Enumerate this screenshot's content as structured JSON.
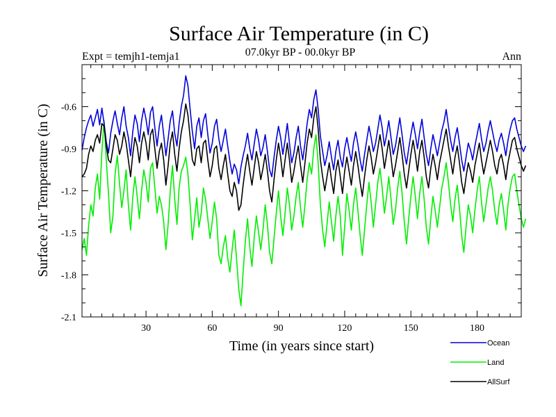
{
  "chart_data": {
    "type": "line",
    "title": "Surface Air Temperature (in C)",
    "subtitle_left": "Expt = temjh1-temja1",
    "subtitle_center": "07.0kyr BP - 00.0kyr BP",
    "subtitle_right": "Ann",
    "xlabel": "Time (in years since start)",
    "ylabel": "Surface Air Temperature (in C)",
    "xlim": [
      1,
      200
    ],
    "ylim": [
      -2.1,
      -0.3
    ],
    "xticks": [
      30,
      60,
      90,
      120,
      150,
      180
    ],
    "xtick_labels": [
      "30",
      "60",
      "90",
      "120",
      "150",
      "180"
    ],
    "yticks": [
      -2.1,
      -1.8,
      -1.5,
      -1.2,
      -0.9,
      -0.6
    ],
    "ytick_labels": [
      "-2.1",
      "-1.8",
      "-1.5",
      "-1.2",
      "-0.9",
      "-0.6"
    ],
    "legend_position": "bottom-right, below plot",
    "series": [
      {
        "name": "Ocean",
        "color": "#0000dd",
        "values": [
          -0.91,
          -0.82,
          -0.75,
          -0.7,
          -0.66,
          -0.74,
          -0.68,
          -0.62,
          -0.73,
          -0.61,
          -0.72,
          -0.85,
          -0.93,
          -0.79,
          -0.7,
          -0.63,
          -0.72,
          -0.8,
          -0.68,
          -0.6,
          -0.74,
          -0.82,
          -0.95,
          -0.78,
          -0.66,
          -0.72,
          -0.85,
          -0.7,
          -0.61,
          -0.69,
          -0.8,
          -0.64,
          -0.6,
          -0.75,
          -0.88,
          -0.74,
          -0.66,
          -0.8,
          -0.95,
          -0.83,
          -0.7,
          -0.63,
          -0.79,
          -0.88,
          -0.72,
          -0.6,
          -0.52,
          -0.38,
          -0.45,
          -0.62,
          -0.78,
          -0.9,
          -0.74,
          -0.68,
          -0.82,
          -0.7,
          -0.65,
          -0.8,
          -0.93,
          -0.86,
          -0.74,
          -0.69,
          -0.83,
          -0.92,
          -0.84,
          -0.76,
          -0.88,
          -0.99,
          -1.08,
          -1.01,
          -1.05,
          -1.15,
          -1.03,
          -0.95,
          -0.88,
          -0.79,
          -0.9,
          -0.98,
          -0.87,
          -0.76,
          -0.84,
          -0.95,
          -0.89,
          -0.8,
          -0.92,
          -1.05,
          -1.1,
          -0.96,
          -0.84,
          -0.74,
          -0.82,
          -0.94,
          -0.84,
          -0.72,
          -0.86,
          -1.0,
          -0.93,
          -0.82,
          -0.74,
          -0.88,
          -0.98,
          -0.86,
          -0.72,
          -0.62,
          -0.68,
          -0.55,
          -0.48,
          -0.62,
          -0.81,
          -0.92,
          -1.02,
          -0.95,
          -0.85,
          -0.96,
          -1.05,
          -0.92,
          -0.84,
          -0.96,
          -1.03,
          -0.9,
          -0.82,
          -0.91,
          -0.99,
          -0.86,
          -0.78,
          -0.87,
          -0.98,
          -1.06,
          -0.94,
          -0.84,
          -0.74,
          -0.82,
          -0.92,
          -0.86,
          -0.76,
          -0.66,
          -0.75,
          -0.88,
          -0.8,
          -0.7,
          -0.82,
          -0.94,
          -0.88,
          -0.78,
          -0.68,
          -0.8,
          -0.93,
          -1.01,
          -0.9,
          -0.8,
          -0.71,
          -0.8,
          -0.9,
          -0.78,
          -0.69,
          -0.82,
          -0.94,
          -1.02,
          -0.9,
          -0.8,
          -0.87,
          -0.95,
          -0.86,
          -0.77,
          -0.71,
          -0.62,
          -0.74,
          -0.84,
          -0.92,
          -0.82,
          -0.75,
          -0.86,
          -0.98,
          -1.06,
          -0.96,
          -0.86,
          -0.91,
          -0.98,
          -0.88,
          -0.8,
          -0.72,
          -0.83,
          -0.92,
          -0.86,
          -0.77,
          -0.7,
          -0.78,
          -0.86,
          -0.92,
          -0.84,
          -0.79,
          -0.86,
          -0.95,
          -0.84,
          -0.76,
          -0.7,
          -0.68,
          -0.76,
          -0.82,
          -0.88,
          -0.92,
          -0.88
        ]
      },
      {
        "name": "Land",
        "color": "#00ee00",
        "values": [
          -1.62,
          -1.54,
          -1.66,
          -1.45,
          -1.3,
          -1.38,
          -1.18,
          -1.08,
          -1.26,
          -0.92,
          -0.7,
          -0.98,
          -1.22,
          -1.5,
          -1.38,
          -1.08,
          -0.95,
          -1.15,
          -1.32,
          -1.2,
          -1.05,
          -1.3,
          -1.48,
          -1.25,
          -1.1,
          -1.24,
          -1.4,
          -1.2,
          -1.05,
          -1.14,
          -1.28,
          -1.04,
          -1.0,
          -1.18,
          -1.36,
          -1.24,
          -1.3,
          -1.42,
          -1.62,
          -1.44,
          -1.2,
          -1.02,
          -1.26,
          -1.44,
          -1.18,
          -1.06,
          -1.02,
          -0.96,
          -1.08,
          -1.3,
          -1.55,
          -1.4,
          -1.25,
          -1.46,
          -1.36,
          -1.18,
          -1.26,
          -1.4,
          -1.54,
          -1.42,
          -1.28,
          -1.4,
          -1.66,
          -1.72,
          -1.6,
          -1.52,
          -1.68,
          -1.78,
          -1.62,
          -1.48,
          -1.68,
          -1.9,
          -2.02,
          -1.78,
          -1.56,
          -1.4,
          -1.6,
          -1.74,
          -1.54,
          -1.38,
          -1.5,
          -1.62,
          -1.48,
          -1.3,
          -1.44,
          -1.64,
          -1.72,
          -1.54,
          -1.36,
          -1.2,
          -1.38,
          -1.52,
          -1.36,
          -1.18,
          -1.3,
          -1.48,
          -1.38,
          -1.24,
          -1.14,
          -1.32,
          -1.46,
          -1.3,
          -1.12,
          -1.0,
          -1.08,
          -0.9,
          -0.8,
          -1.0,
          -1.3,
          -1.48,
          -1.6,
          -1.44,
          -1.28,
          -1.42,
          -1.56,
          -1.38,
          -1.24,
          -1.38,
          -1.66,
          -1.46,
          -1.22,
          -1.34,
          -1.48,
          -1.3,
          -1.18,
          -1.34,
          -1.52,
          -1.66,
          -1.48,
          -1.3,
          -1.14,
          -1.28,
          -1.46,
          -1.3,
          -1.14,
          -1.04,
          -1.18,
          -1.36,
          -1.24,
          -1.1,
          -1.26,
          -1.44,
          -1.34,
          -1.18,
          -1.06,
          -1.22,
          -1.42,
          -1.58,
          -1.4,
          -1.24,
          -1.1,
          -1.24,
          -1.4,
          -1.22,
          -1.1,
          -1.26,
          -1.46,
          -1.58,
          -1.4,
          -1.24,
          -1.34,
          -1.46,
          -1.32,
          -1.18,
          -1.1,
          -1.0,
          -1.14,
          -1.3,
          -1.42,
          -1.26,
          -1.16,
          -1.32,
          -1.52,
          -1.64,
          -1.46,
          -1.3,
          -1.38,
          -1.5,
          -1.34,
          -1.2,
          -1.1,
          -1.28,
          -1.42,
          -1.3,
          -1.18,
          -1.1,
          -1.2,
          -1.34,
          -1.44,
          -1.3,
          -1.22,
          -1.34,
          -1.48,
          -1.3,
          -1.18,
          -1.1,
          -1.08,
          -1.2,
          -1.3,
          -1.4,
          -1.46,
          -1.4
        ]
      },
      {
        "name": "AllSurf",
        "color": "#000000",
        "values": [
          -1.1,
          -1.08,
          -1.04,
          -0.94,
          -0.88,
          -0.92,
          -0.84,
          -0.8,
          -0.86,
          -0.72,
          -0.74,
          -0.88,
          -0.98,
          -1.0,
          -0.9,
          -0.8,
          -0.84,
          -0.94,
          -0.88,
          -0.78,
          -0.86,
          -0.98,
          -1.1,
          -0.94,
          -0.82,
          -0.88,
          -1.0,
          -0.86,
          -0.78,
          -0.86,
          -0.98,
          -0.8,
          -0.76,
          -0.9,
          -1.04,
          -0.92,
          -0.86,
          -0.98,
          -1.16,
          -1.02,
          -0.86,
          -0.78,
          -0.94,
          -1.06,
          -0.9,
          -0.78,
          -0.7,
          -0.58,
          -0.66,
          -0.82,
          -0.98,
          -1.02,
          -0.9,
          -0.88,
          -1.0,
          -0.86,
          -0.84,
          -0.98,
          -1.1,
          -1.02,
          -0.9,
          -0.88,
          -1.04,
          -1.12,
          -1.02,
          -0.94,
          -1.08,
          -1.2,
          -1.24,
          -1.14,
          -1.2,
          -1.34,
          -1.3,
          -1.16,
          -1.04,
          -0.94,
          -1.06,
          -1.16,
          -1.04,
          -0.92,
          -1.0,
          -1.12,
          -1.04,
          -0.94,
          -1.06,
          -1.2,
          -1.28,
          -1.12,
          -0.98,
          -0.86,
          -0.96,
          -1.1,
          -0.98,
          -0.86,
          -0.98,
          -1.14,
          -1.06,
          -0.96,
          -0.88,
          -1.02,
          -1.14,
          -1.0,
          -0.86,
          -0.76,
          -0.82,
          -0.68,
          -0.6,
          -0.76,
          -0.98,
          -1.1,
          -1.2,
          -1.1,
          -1.0,
          -1.12,
          -1.22,
          -1.06,
          -0.98,
          -1.1,
          -1.22,
          -1.06,
          -0.96,
          -1.06,
          -1.16,
          -1.02,
          -0.92,
          -1.02,
          -1.14,
          -1.24,
          -1.1,
          -0.98,
          -0.88,
          -0.96,
          -1.08,
          -1.0,
          -0.9,
          -0.8,
          -0.9,
          -1.04,
          -0.94,
          -0.84,
          -0.96,
          -1.1,
          -1.02,
          -0.92,
          -0.82,
          -0.94,
          -1.08,
          -1.18,
          -1.06,
          -0.94,
          -0.84,
          -0.94,
          -1.06,
          -0.92,
          -0.84,
          -0.96,
          -1.1,
          -1.18,
          -1.04,
          -0.94,
          -1.02,
          -1.12,
          -1.0,
          -0.92,
          -0.84,
          -0.76,
          -0.88,
          -0.98,
          -1.08,
          -0.96,
          -0.88,
          -1.0,
          -1.14,
          -1.22,
          -1.1,
          -1.0,
          -1.06,
          -1.14,
          -1.02,
          -0.94,
          -0.86,
          -0.98,
          -1.08,
          -1.0,
          -0.92,
          -0.84,
          -0.92,
          -1.02,
          -1.08,
          -0.98,
          -0.94,
          -1.02,
          -1.12,
          -1.0,
          -0.92,
          -0.84,
          -0.82,
          -0.9,
          -0.96,
          -1.02,
          -1.06,
          -1.02
        ]
      }
    ]
  }
}
